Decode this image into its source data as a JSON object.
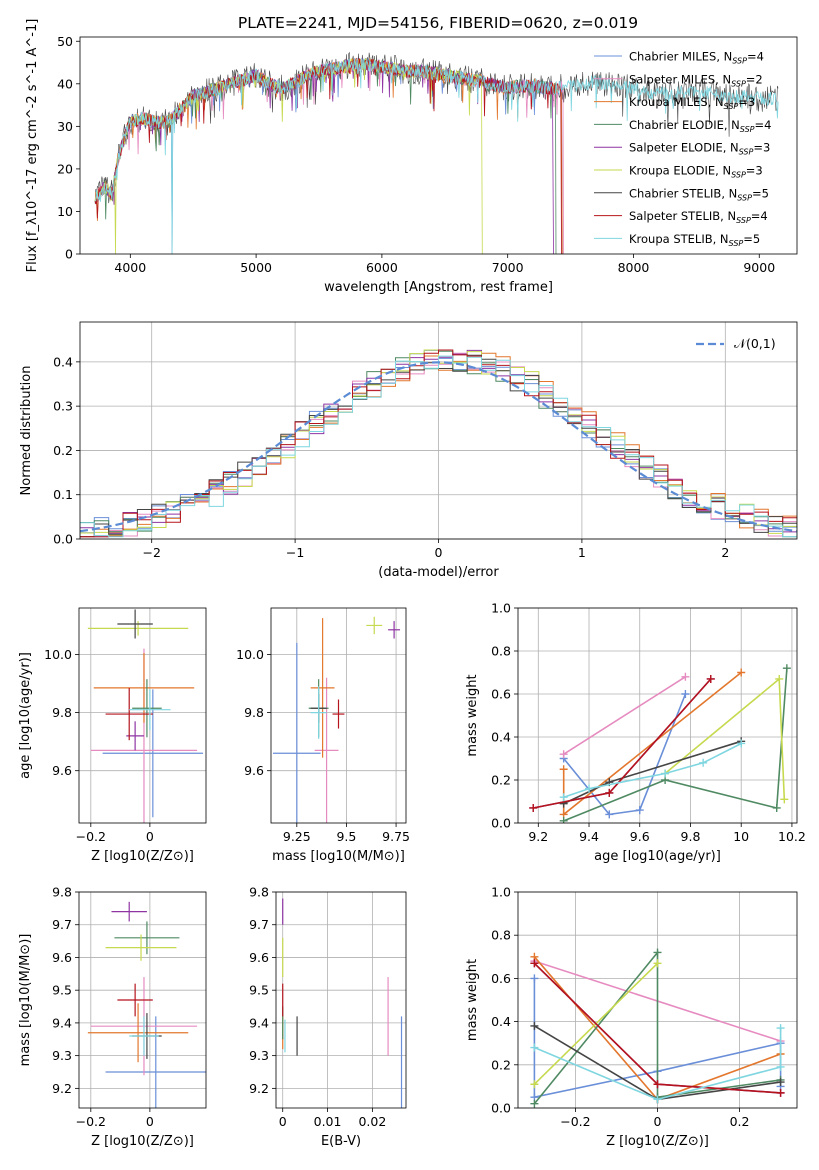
{
  "figure": {
    "title": "PLATE=2241, MJD=54156, FIBERID=0620, z=0.019"
  },
  "model_colors": [
    "#6a8fd8",
    "#e68bc0",
    "#e3772d",
    "#4f8a62",
    "#8e35a3",
    "#c7d94e",
    "#454545",
    "#b5141c",
    "#7fd6e0"
  ],
  "legend_labels": [
    "Chabrier MILES, N_SSP=4",
    "Salpeter MILES, N_SSP=2",
    "Kroupa MILES, N_SSP=3",
    "Chabrier ELODIE, N_SSP=4",
    "Salpeter ELODIE, N_SSP=3",
    "Kroupa ELODIE, N_SSP=3",
    "Chabrier STELIB, N_SSP=5",
    "Salpeter STELIB, N_SSP=4",
    "Kroupa STELIB, N_SSP=5"
  ],
  "chart_data": [
    {
      "id": "spectrum",
      "type": "line",
      "xlabel": "wavelength [Angstrom, rest frame]",
      "ylabel": "Flux [f_λ10^-17 erg cm^-2 s^-1 A^-1]",
      "xlim": [
        3600,
        9300
      ],
      "ylim": [
        0,
        51
      ],
      "xticks": [
        4000,
        5000,
        6000,
        7000,
        8000,
        9000
      ],
      "yticks": [
        0,
        10,
        20,
        30,
        40,
        50
      ],
      "legend": "upper right",
      "continuum": {
        "x": [
          3720,
          3800,
          3850,
          3900,
          3950,
          4000,
          4100,
          4200,
          4300,
          4400,
          4500,
          4600,
          4700,
          4800,
          4900,
          5000,
          5100,
          5200,
          5300,
          5400,
          5500,
          5600,
          5700,
          5800,
          5900,
          6000,
          6100,
          6200,
          6300,
          6400,
          6500,
          6600,
          6700,
          6800,
          6900,
          7000,
          7100,
          7200,
          7300,
          7400,
          7500,
          7600,
          7700,
          7800,
          7900,
          8000,
          8100,
          8200,
          8300,
          8400,
          8500,
          8600,
          8700,
          8800,
          8900,
          9000,
          9100,
          9150
        ],
        "y": [
          13,
          16,
          14,
          22,
          27,
          31,
          32,
          31,
          31,
          34,
          37,
          38,
          39,
          40,
          41,
          42,
          40,
          39,
          40,
          42,
          43,
          43.5,
          44,
          44.5,
          44.5,
          44,
          43.5,
          43,
          43,
          42.5,
          42,
          41.5,
          41,
          40.5,
          39.5,
          39,
          39.5,
          39.5,
          39,
          39,
          39.5,
          40,
          40.5,
          40,
          39.5,
          39,
          38,
          38,
          37.5,
          38,
          38,
          38,
          37,
          37,
          37,
          36.5,
          36.5,
          36.5
        ]
      },
      "end_x": [
        7430,
        7440,
        7430,
        7380,
        7360,
        6800,
        9150,
        7430,
        9150
      ],
      "dips": [
        {
          "model": 0,
          "x": 4330,
          "y": 0
        },
        {
          "model": 8,
          "x": 4330,
          "y": 0
        },
        {
          "model": 5,
          "x": 3880,
          "y": 0
        },
        {
          "model": 5,
          "x": 6800,
          "y": 0
        },
        {
          "model": 7,
          "x": 7430,
          "y": 0
        }
      ]
    },
    {
      "id": "residual-histogram",
      "type": "step",
      "xlabel": "(data-model)/error",
      "ylabel": "Normed distribution",
      "xlim": [
        -2.5,
        2.5
      ],
      "ylim": [
        0,
        0.49
      ],
      "xticks": [
        -2,
        -1,
        0,
        1,
        2
      ],
      "yticks": [
        0.0,
        0.1,
        0.2,
        0.3,
        0.4
      ],
      "bin_width": 0.1,
      "reference_curve": {
        "label": "𝒩(0,1)",
        "mean": 0,
        "sigma": 1,
        "style": "dashed"
      },
      "legend": "upper right"
    },
    {
      "id": "age-vs-metallicity",
      "type": "scatter",
      "xlabel": "Z [log10(Z/Z⊙)]",
      "ylabel": "age [log10(age/yr)]",
      "xlim": [
        -0.24,
        0.19
      ],
      "ylim": [
        9.42,
        10.16
      ],
      "xticks": [
        -0.2,
        0.0
      ],
      "yticks": [
        9.6,
        9.8,
        10.0
      ],
      "points": [
        {
          "model": 0,
          "x": 0.01,
          "xerr": 0.17,
          "y": 9.66,
          "yerr": 0.22
        },
        {
          "model": 1,
          "x": -0.02,
          "xerr": 0.18,
          "y": 9.67,
          "yerr": 0.35
        },
        {
          "model": 2,
          "x": -0.02,
          "xerr": 0.17,
          "y": 9.885,
          "yerr": 0.12
        },
        {
          "model": 3,
          "x": -0.01,
          "xerr": 0.05,
          "y": 9.815,
          "yerr": 0.1
        },
        {
          "model": 4,
          "x": -0.05,
          "xerr": 0.03,
          "y": 9.72,
          "yerr": 0.05
        },
        {
          "model": 5,
          "x": -0.04,
          "xerr": 0.17,
          "y": 10.09,
          "yerr": 0.025
        },
        {
          "model": 6,
          "x": -0.05,
          "xerr": 0.06,
          "y": 10.105,
          "yerr": 0.05
        },
        {
          "model": 7,
          "x": -0.07,
          "xerr": 0.08,
          "y": 9.795,
          "yerr": 0.09
        },
        {
          "model": 8,
          "x": 0.0,
          "xerr": 0.07,
          "y": 9.81,
          "yerr": 0.07
        }
      ]
    },
    {
      "id": "age-vs-mass",
      "type": "scatter",
      "xlabel": "mass [log10(M/M⊙)]",
      "ylabel": "",
      "xlim": [
        9.12,
        9.8
      ],
      "ylim": [
        9.42,
        10.16
      ],
      "xticks": [
        9.25,
        9.5,
        9.75
      ],
      "yticks": [
        9.6,
        9.8,
        10.0
      ],
      "points": [
        {
          "model": 0,
          "x": 9.25,
          "xerr": 0.12,
          "y": 9.66,
          "yerr": 0.38
        },
        {
          "model": 1,
          "x": 9.4,
          "xerr": 0.06,
          "y": 9.67,
          "yerr": 0.25
        },
        {
          "model": 2,
          "x": 9.38,
          "xerr": 0.06,
          "y": 9.885,
          "yerr": 0.24
        },
        {
          "model": 3,
          "x": 9.36,
          "xerr": 0.05,
          "y": 9.815,
          "yerr": 0.1
        },
        {
          "model": 4,
          "x": 9.74,
          "xerr": 0.03,
          "y": 10.085,
          "yerr": 0.03
        },
        {
          "model": 5,
          "x": 9.64,
          "xerr": 0.04,
          "y": 10.1,
          "yerr": 0.03
        },
        {
          "model": 6,
          "x": 9.36,
          "xerr": 0.04,
          "y": 9.815,
          "yerr": 0.05
        },
        {
          "model": 7,
          "x": 9.46,
          "xerr": 0.03,
          "y": 9.795,
          "yerr": 0.05
        },
        {
          "model": 8,
          "x": 9.36,
          "xerr": 0.04,
          "y": 9.8,
          "yerr": 0.09
        }
      ]
    },
    {
      "id": "mass-weight-vs-age",
      "type": "line",
      "xlabel": "age [log10(age/yr)]",
      "ylabel": "mass weight",
      "xlim": [
        9.12,
        10.22
      ],
      "ylim": [
        0,
        1
      ],
      "xticks": [
        9.2,
        9.4,
        9.6,
        9.8,
        10.0,
        10.2
      ],
      "yticks": [
        0.0,
        0.2,
        0.4,
        0.6,
        0.8,
        1.0
      ],
      "series": [
        {
          "model": 0,
          "x": [
            9.3,
            9.48,
            9.6,
            9.78
          ],
          "y": [
            0.3,
            0.04,
            0.06,
            0.6
          ]
        },
        {
          "model": 1,
          "x": [
            9.3,
            9.78
          ],
          "y": [
            0.32,
            0.68
          ]
        },
        {
          "model": 2,
          "x": [
            9.3,
            9.3,
            10.0
          ],
          "y": [
            0.25,
            0.04,
            0.7
          ]
        },
        {
          "model": 3,
          "x": [
            9.3,
            9.7,
            10.14,
            10.18
          ],
          "y": [
            0.01,
            0.2,
            0.07,
            0.72
          ]
        },
        {
          "model": 4,
          "x": [
            9.18,
            9.48,
            9.88
          ],
          "y": [
            0.07,
            0.14,
            0.67
          ]
        },
        {
          "model": 5,
          "x": [
            9.7,
            10.15,
            10.17
          ],
          "y": [
            0.23,
            0.67,
            0.11
          ]
        },
        {
          "model": 6,
          "x": [
            9.3,
            9.48,
            10.0
          ],
          "y": [
            0.09,
            0.19,
            0.38
          ]
        },
        {
          "model": 7,
          "x": [
            9.18,
            9.48,
            9.88
          ],
          "y": [
            0.07,
            0.14,
            0.67
          ]
        },
        {
          "model": 8,
          "x": [
            9.3,
            9.4,
            9.7,
            9.85,
            10.0
          ],
          "y": [
            0.12,
            0.16,
            0.23,
            0.28,
            0.37
          ]
        }
      ]
    },
    {
      "id": "mass-vs-metallicity",
      "type": "scatter",
      "xlabel": "Z [log10(Z/Z⊙)]",
      "ylabel": "mass [log10(M/M⊙)]",
      "xlim": [
        -0.24,
        0.19
      ],
      "ylim": [
        9.14,
        9.8
      ],
      "xticks": [
        -0.2,
        0.0
      ],
      "yticks": [
        9.2,
        9.3,
        9.4,
        9.5,
        9.6,
        9.7,
        9.8
      ],
      "points": [
        {
          "model": 0,
          "x": 0.02,
          "xerr": 0.17,
          "y": 9.25,
          "yerr": 0.17
        },
        {
          "model": 1,
          "x": -0.02,
          "xerr": 0.18,
          "y": 9.39,
          "yerr": 0.15
        },
        {
          "model": 2,
          "x": -0.04,
          "xerr": 0.17,
          "y": 9.37,
          "yerr": 0.09
        },
        {
          "model": 3,
          "x": -0.01,
          "xerr": 0.11,
          "y": 9.66,
          "yerr": 0.05
        },
        {
          "model": 4,
          "x": -0.07,
          "xerr": 0.06,
          "y": 9.74,
          "yerr": 0.03
        },
        {
          "model": 5,
          "x": -0.03,
          "xerr": 0.12,
          "y": 9.63,
          "yerr": 0.04
        },
        {
          "model": 6,
          "x": -0.01,
          "xerr": 0.05,
          "y": 9.36,
          "yerr": 0.07
        },
        {
          "model": 7,
          "x": -0.05,
          "xerr": 0.06,
          "y": 9.47,
          "yerr": 0.05
        },
        {
          "model": 8,
          "x": -0.02,
          "xerr": 0.05,
          "y": 9.36,
          "yerr": 0.06
        }
      ]
    },
    {
      "id": "mass-vs-extinction",
      "type": "scatter",
      "xlabel": "E(B-V)",
      "ylabel": "",
      "xlim": [
        -0.0015,
        0.0275
      ],
      "ylim": [
        9.14,
        9.8
      ],
      "xticks": [
        0.0,
        0.01,
        0.02
      ],
      "yticks": [
        9.2,
        9.3,
        9.4,
        9.5,
        9.6,
        9.7,
        9.8
      ],
      "points": [
        {
          "model": 0,
          "x": 0.0265,
          "xerr": 0,
          "y": 9.25,
          "yerr": 0.17
        },
        {
          "model": 1,
          "x": 0.0235,
          "xerr": 0,
          "y": 9.42,
          "yerr": 0.12
        },
        {
          "model": 2,
          "x": 0.0,
          "xerr": 0,
          "y": 9.37,
          "yerr": 0.05
        },
        {
          "model": 3,
          "x": 0.0,
          "xerr": 0,
          "y": 9.4,
          "yerr": 0.05
        },
        {
          "model": 4,
          "x": 0.0,
          "xerr": 0,
          "y": 9.74,
          "yerr": 0.04
        },
        {
          "model": 5,
          "x": 0.0,
          "xerr": 0,
          "y": 9.6,
          "yerr": 0.06
        },
        {
          "model": 6,
          "x": 0.0032,
          "xerr": 0,
          "y": 9.36,
          "yerr": 0.06
        },
        {
          "model": 7,
          "x": 0.0,
          "xerr": 0,
          "y": 9.47,
          "yerr": 0.05
        },
        {
          "model": 8,
          "x": 0.0005,
          "xerr": 0,
          "y": 9.36,
          "yerr": 0.05
        }
      ]
    },
    {
      "id": "mass-weight-vs-metallicity",
      "type": "line",
      "xlabel": "Z [log10(Z/Z⊙)]",
      "ylabel": "mass weight",
      "xlim": [
        -0.34,
        0.34
      ],
      "ylim": [
        0,
        1
      ],
      "xticks": [
        -0.2,
        0.0,
        0.2
      ],
      "yticks": [
        0.0,
        0.2,
        0.4,
        0.6,
        0.8,
        1.0
      ],
      "series": [
        {
          "model": 0,
          "x": [
            -0.3,
            -0.3,
            0.0,
            0.3,
            0.3
          ],
          "y": [
            0.6,
            0.05,
            0.17,
            0.3,
            0.1
          ]
        },
        {
          "model": 1,
          "x": [
            -0.3,
            0.3
          ],
          "y": [
            0.68,
            0.31
          ]
        },
        {
          "model": 2,
          "x": [
            -0.3,
            0.0,
            0.3
          ],
          "y": [
            0.7,
            0.04,
            0.25
          ]
        },
        {
          "model": 3,
          "x": [
            -0.3,
            0.0,
            0.0,
            0.3
          ],
          "y": [
            0.02,
            0.72,
            0.05,
            0.13
          ]
        },
        {
          "model": 4,
          "x": [
            -0.3,
            0.0,
            0.3
          ],
          "y": [
            0.67,
            0.11,
            0.07
          ]
        },
        {
          "model": 5,
          "x": [
            -0.3,
            0.0
          ],
          "y": [
            0.11,
            0.67
          ]
        },
        {
          "model": 6,
          "x": [
            -0.3,
            0.0,
            0.3
          ],
          "y": [
            0.38,
            0.04,
            0.12
          ]
        },
        {
          "model": 7,
          "x": [
            -0.3,
            0.0,
            0.3
          ],
          "y": [
            0.67,
            0.11,
            0.07
          ]
        },
        {
          "model": 8,
          "x": [
            -0.3,
            0.0,
            0.3,
            0.3
          ],
          "y": [
            0.28,
            0.04,
            0.19,
            0.37
          ]
        }
      ]
    }
  ]
}
